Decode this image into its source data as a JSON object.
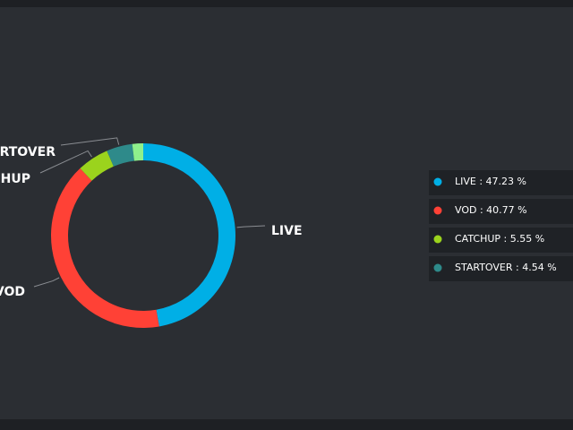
{
  "chart_data": {
    "type": "donut",
    "categories": [
      "LIVE",
      "VOD",
      "CATCHUP",
      "STARTOVER",
      null
    ],
    "values": [
      47.23,
      40.77,
      5.55,
      4.54,
      1.91
    ],
    "value_labels": [
      "LIVE : 47.23 %",
      "VOD : 40.77 %",
      "CATCHUP : 5.55 %",
      "STARTOVER : 4.54 %",
      null
    ],
    "colors": [
      "#00afe6",
      "#ff4136",
      "#9bd31d",
      "#2e8a8a",
      "#8ff08c"
    ],
    "legend": "right"
  }
}
